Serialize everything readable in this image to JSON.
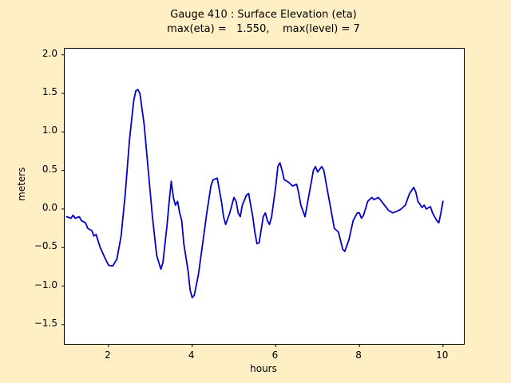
{
  "figure": {
    "title": "Gauge 410 : Surface Elevation (eta)",
    "subtitle": "max(eta) =   1.550,    max(level) = 7",
    "background_color": "#ffefc5"
  },
  "chart_data": {
    "type": "line",
    "title": "Gauge 410 : Surface Elevation (eta)",
    "subtitle": "max(eta) =   1.550,    max(level) = 7",
    "xlabel": "hours",
    "ylabel": "meters",
    "xlim": [
      0.95,
      10.5
    ],
    "ylim": [
      -1.75,
      2.08
    ],
    "xticks": [
      2,
      4,
      6,
      8,
      10
    ],
    "yticks": [
      -1.5,
      -1.0,
      -0.5,
      0.0,
      0.5,
      1.0,
      1.5,
      2.0
    ],
    "grid": false,
    "legend": null,
    "line_color": "#0000cd",
    "max_eta": 1.55,
    "max_level": 7,
    "x": [
      1.0,
      1.1,
      1.15,
      1.2,
      1.3,
      1.35,
      1.45,
      1.5,
      1.6,
      1.65,
      1.7,
      1.8,
      1.9,
      2.0,
      2.1,
      2.2,
      2.3,
      2.4,
      2.5,
      2.6,
      2.65,
      2.7,
      2.75,
      2.85,
      2.95,
      3.05,
      3.15,
      3.25,
      3.3,
      3.4,
      3.45,
      3.5,
      3.55,
      3.6,
      3.65,
      3.7,
      3.75,
      3.8,
      3.9,
      3.95,
      4.0,
      4.05,
      4.15,
      4.25,
      4.35,
      4.45,
      4.5,
      4.6,
      4.7,
      4.75,
      4.8,
      4.9,
      5.0,
      5.05,
      5.1,
      5.15,
      5.2,
      5.3,
      5.35,
      5.4,
      5.45,
      5.5,
      5.55,
      5.6,
      5.7,
      5.75,
      5.8,
      5.85,
      5.9,
      6.0,
      6.05,
      6.1,
      6.15,
      6.2,
      6.3,
      6.4,
      6.5,
      6.55,
      6.6,
      6.7,
      6.8,
      6.9,
      6.95,
      7.0,
      7.1,
      7.15,
      7.25,
      7.3,
      7.4,
      7.5,
      7.6,
      7.65,
      7.75,
      7.85,
      7.95,
      8.0,
      8.05,
      8.1,
      8.2,
      8.3,
      8.35,
      8.45,
      8.5,
      8.6,
      8.7,
      8.8,
      8.9,
      9.0,
      9.1,
      9.2,
      9.3,
      9.35,
      9.4,
      9.5,
      9.55,
      9.6,
      9.7,
      9.75,
      9.85,
      9.9,
      9.95,
      10.0
    ],
    "y": [
      -0.1,
      -0.12,
      -0.08,
      -0.12,
      -0.1,
      -0.15,
      -0.18,
      -0.25,
      -0.28,
      -0.35,
      -0.33,
      -0.5,
      -0.62,
      -0.73,
      -0.74,
      -0.65,
      -0.35,
      0.2,
      0.9,
      1.4,
      1.53,
      1.55,
      1.5,
      1.1,
      0.5,
      -0.1,
      -0.6,
      -0.78,
      -0.7,
      -0.2,
      0.1,
      0.36,
      0.15,
      0.05,
      0.1,
      -0.05,
      -0.15,
      -0.45,
      -0.8,
      -1.05,
      -1.15,
      -1.12,
      -0.85,
      -0.45,
      -0.05,
      0.3,
      0.38,
      0.4,
      0.1,
      -0.1,
      -0.2,
      -0.05,
      0.15,
      0.1,
      -0.05,
      -0.1,
      0.05,
      0.18,
      0.2,
      0.05,
      -0.1,
      -0.3,
      -0.45,
      -0.44,
      -0.1,
      -0.05,
      -0.15,
      -0.2,
      -0.1,
      0.3,
      0.55,
      0.6,
      0.5,
      0.38,
      0.35,
      0.3,
      0.32,
      0.2,
      0.05,
      -0.1,
      0.2,
      0.5,
      0.55,
      0.48,
      0.55,
      0.5,
      0.2,
      0.05,
      -0.25,
      -0.3,
      -0.52,
      -0.55,
      -0.4,
      -0.15,
      -0.05,
      -0.05,
      -0.12,
      -0.08,
      0.1,
      0.15,
      0.12,
      0.15,
      0.12,
      0.05,
      -0.02,
      -0.05,
      -0.03,
      0.0,
      0.05,
      0.2,
      0.28,
      0.22,
      0.1,
      0.02,
      0.05,
      0.0,
      0.03,
      -0.05,
      -0.15,
      -0.18,
      -0.05,
      0.1
    ]
  }
}
